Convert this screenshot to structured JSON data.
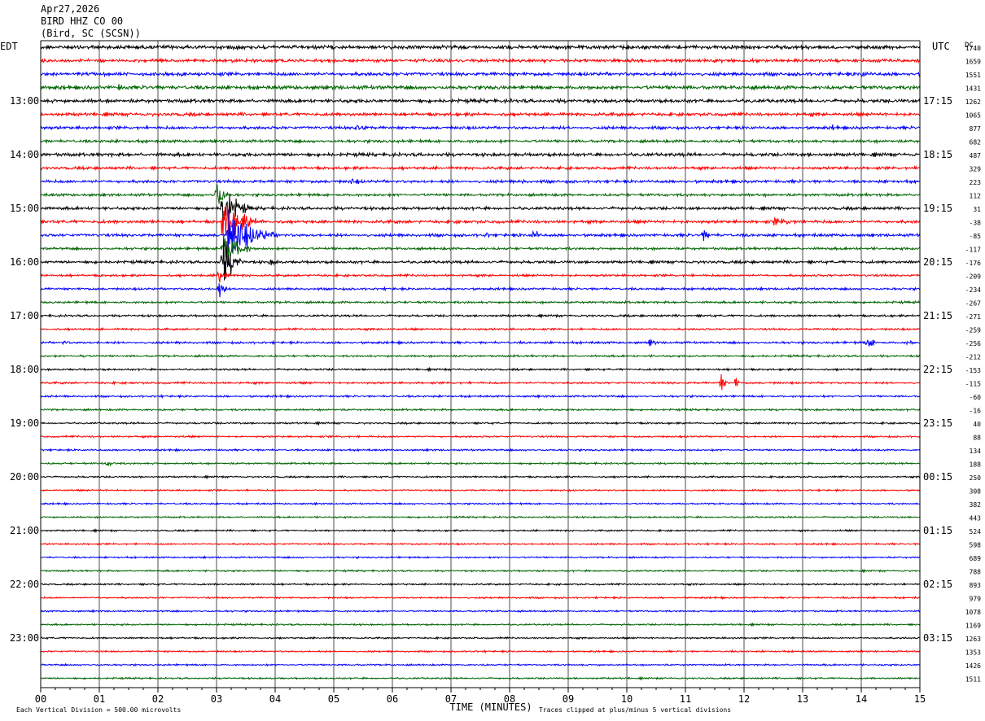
{
  "header": {
    "date": "Apr27,2026",
    "station": "BIRD HHZ CO 00",
    "location": "(Bird, SC (SCSN))"
  },
  "chart_data": {
    "type": "line",
    "description_free": true,
    "left_timezone": "EDT",
    "right_timezone": "UTC",
    "dc_label": "DC",
    "xlabel": "TIME (MINUTES)",
    "x_ticks": [
      "00",
      "01",
      "02",
      "03",
      "04",
      "05",
      "06",
      "07",
      "08",
      "09",
      "10",
      "11",
      "12",
      "13",
      "14",
      "15"
    ],
    "xlim": [
      0,
      15
    ],
    "left_hour_labels": [
      {
        "row": 4,
        "text": "13:00"
      },
      {
        "row": 8,
        "text": "14:00"
      },
      {
        "row": 12,
        "text": "15:00"
      },
      {
        "row": 16,
        "text": "16:00"
      },
      {
        "row": 20,
        "text": "17:00"
      },
      {
        "row": 24,
        "text": "18:00"
      },
      {
        "row": 28,
        "text": "19:00"
      },
      {
        "row": 32,
        "text": "20:00"
      },
      {
        "row": 36,
        "text": "21:00"
      },
      {
        "row": 40,
        "text": "22:00"
      },
      {
        "row": 44,
        "text": "23:00"
      }
    ],
    "right_hour_labels": [
      {
        "row": 4,
        "text": "17:15"
      },
      {
        "row": 8,
        "text": "18:15"
      },
      {
        "row": 12,
        "text": "19:15"
      },
      {
        "row": 16,
        "text": "20:15"
      },
      {
        "row": 20,
        "text": "21:15"
      },
      {
        "row": 24,
        "text": "22:15"
      },
      {
        "row": 28,
        "text": "23:15"
      },
      {
        "row": 32,
        "text": "00:15"
      },
      {
        "row": 36,
        "text": "01:15"
      },
      {
        "row": 40,
        "text": "02:15"
      },
      {
        "row": 44,
        "text": "03:15"
      }
    ],
    "dc_values": [
      "1740",
      "1659",
      "1551",
      "1431",
      "1262",
      "1065",
      "877",
      "682",
      "487",
      "329",
      "223",
      "112",
      "31",
      "-38",
      "-85",
      "-117",
      "-176",
      "-209",
      "-234",
      "-267",
      "-271",
      "-259",
      "-256",
      "-212",
      "-153",
      "-115",
      "-60",
      "-16",
      "40",
      "88",
      "134",
      "188",
      "250",
      "308",
      "382",
      "443",
      "524",
      "598",
      "689",
      "788",
      "893",
      "979",
      "1078",
      "1169",
      "1263",
      "1353",
      "1426",
      "1511"
    ],
    "trace_colors": [
      "#000000",
      "#ff0000",
      "#0000ff",
      "#006400"
    ],
    "row_amplitudes": [
      2.6,
      2.2,
      2.4,
      2.6,
      2.4,
      2.2,
      2.0,
      1.9,
      2.3,
      1.9,
      2.0,
      1.8,
      2.0,
      2.1,
      2.0,
      1.7,
      1.9,
      1.5,
      1.5,
      1.5,
      1.4,
      1.3,
      1.5,
      1.3,
      1.3,
      1.4,
      1.3,
      1.3,
      1.2,
      1.2,
      1.2,
      1.2,
      1.1,
      1.1,
      1.1,
      1.1,
      1.1,
      1.1,
      1.1,
      1.1,
      1.1,
      1.1,
      1.1,
      1.1,
      1.1,
      1.1,
      1.1,
      1.1
    ],
    "events": [
      {
        "row": 0,
        "minute": 3.3,
        "amplitude": 4,
        "duration": 0.8
      },
      {
        "row": 2,
        "minute": 14.0,
        "amplitude": 6,
        "duration": 0.4
      },
      {
        "row": 3,
        "minute": 1.3,
        "amplitude": 6,
        "duration": 0.5
      },
      {
        "row": 3,
        "minute": 2.1,
        "amplitude": 4,
        "duration": 0.3
      },
      {
        "row": 6,
        "minute": 5.4,
        "amplitude": 10,
        "duration": 0.3
      },
      {
        "row": 6,
        "minute": 13.5,
        "amplitude": 5,
        "duration": 0.3
      },
      {
        "row": 10,
        "minute": 5.3,
        "amplitude": 5,
        "duration": 0.6
      },
      {
        "row": 10,
        "minute": 8.2,
        "amplitude": 5,
        "duration": 0.3
      },
      {
        "row": 11,
        "minute": 3.0,
        "amplitude": 40,
        "duration": 0.2
      },
      {
        "row": 12,
        "minute": 3.1,
        "amplitude": 40,
        "duration": 0.5
      },
      {
        "row": 13,
        "minute": 3.1,
        "amplitude": 40,
        "duration": 0.7
      },
      {
        "row": 13,
        "minute": 12.5,
        "amplitude": 6,
        "duration": 1.4
      },
      {
        "row": 14,
        "minute": 3.2,
        "amplitude": 40,
        "duration": 0.9
      },
      {
        "row": 14,
        "minute": 8.4,
        "amplitude": 14,
        "duration": 0.2
      },
      {
        "row": 14,
        "minute": 11.3,
        "amplitude": 10,
        "duration": 0.3
      },
      {
        "row": 14,
        "minute": 7.6,
        "amplitude": 5,
        "duration": 0.3
      },
      {
        "row": 15,
        "minute": 3.1,
        "amplitude": 40,
        "duration": 0.5
      },
      {
        "row": 16,
        "minute": 3.1,
        "amplitude": 40,
        "duration": 0.4
      },
      {
        "row": 16,
        "minute": 3.9,
        "amplitude": 5,
        "duration": 0.5
      },
      {
        "row": 17,
        "minute": 3.05,
        "amplitude": 20,
        "duration": 0.2
      },
      {
        "row": 18,
        "minute": 3.05,
        "amplitude": 20,
        "duration": 0.15
      },
      {
        "row": 22,
        "minute": 0.4,
        "amplitude": 5,
        "duration": 0.2
      },
      {
        "row": 22,
        "minute": 10.4,
        "amplitude": 8,
        "duration": 0.2
      },
      {
        "row": 22,
        "minute": 14.1,
        "amplitude": 10,
        "duration": 0.3
      },
      {
        "row": 22,
        "minute": 14.8,
        "amplitude": 6,
        "duration": 0.2
      },
      {
        "row": 23,
        "minute": 0.7,
        "amplitude": 5,
        "duration": 0.2
      },
      {
        "row": 25,
        "minute": 11.6,
        "amplitude": 16,
        "duration": 0.15
      },
      {
        "row": 25,
        "minute": 11.85,
        "amplitude": 14,
        "duration": 0.1
      },
      {
        "row": 31,
        "minute": 1.1,
        "amplitude": 4,
        "duration": 0.6
      }
    ],
    "footer_left": "Each Vertical Division =  500.00 microvolts",
    "footer_right": "Traces clipped at plus/minus 5 vertical divisions"
  }
}
